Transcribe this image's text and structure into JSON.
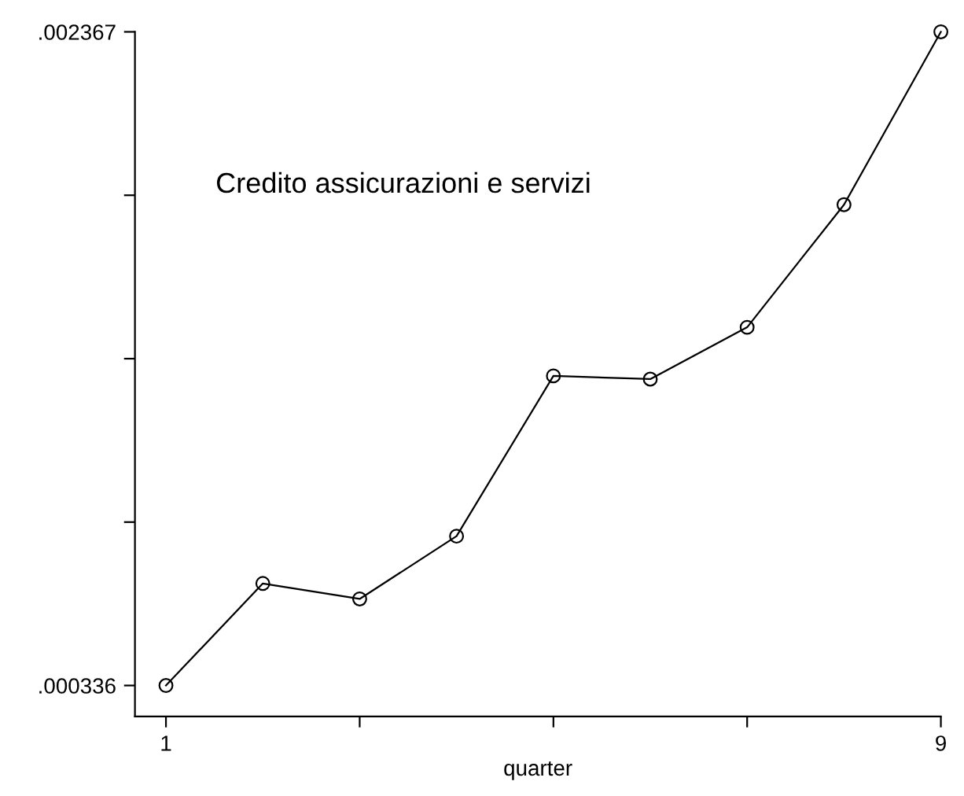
{
  "chart_data": {
    "type": "line",
    "title": "Credito assicurazioni e servizi",
    "xlabel": "quarter",
    "x": [
      1,
      2,
      3,
      4,
      5,
      6,
      7,
      8,
      9
    ],
    "values": [
      0.000336,
      0.000653,
      0.000605,
      0.0008,
      0.001298,
      0.001288,
      0.001449,
      0.00183,
      0.002367
    ],
    "color": "#000000",
    "marker": "circle",
    "line_style": "solid",
    "grid": false,
    "legend": false,
    "xlim": [
      0.68,
      9
    ],
    "xticks": [
      1,
      {
        "value": 3,
        "label": null
      },
      {
        "value": 5,
        "label": null
      },
      {
        "value": 7,
        "label": null
      },
      9
    ],
    "ylim": [
      0.00024,
      0.002367
    ],
    "yticks": [
      {
        "value": 0.000336,
        "label": ".000336"
      },
      {
        "value": 0.00084375,
        "label": null
      },
      {
        "value": 0.0013515,
        "label": null
      },
      {
        "value": 0.00185925,
        "label": null
      },
      {
        "value": 0.002367,
        "label": ".002367"
      }
    ]
  }
}
